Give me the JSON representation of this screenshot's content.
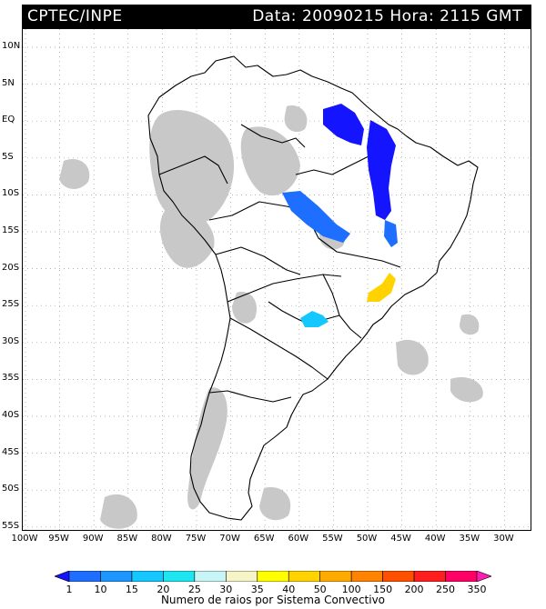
{
  "header": {
    "source": "CPTEC/INPE",
    "datetime": "Data: 20090215 Hora: 2115 GMT"
  },
  "map": {
    "lat_labels": [
      "10N",
      "5N",
      "EQ",
      "5S",
      "10S",
      "15S",
      "20S",
      "25S",
      "30S",
      "35S",
      "40S",
      "45S",
      "50S",
      "55S"
    ],
    "lon_labels": [
      "100W",
      "95W",
      "90W",
      "85W",
      "80W",
      "75W",
      "70W",
      "65W",
      "60W",
      "55W",
      "50W",
      "45W",
      "40W",
      "35W",
      "30W"
    ],
    "background_cloud_color": "#c8c8c8",
    "outline_color": "#000000"
  },
  "legend": {
    "values": [
      "1",
      "10",
      "15",
      "20",
      "25",
      "30",
      "35",
      "40",
      "50",
      "100",
      "150",
      "200",
      "250",
      "350"
    ],
    "colors": [
      "#1414ff",
      "#1e6eff",
      "#1e96ff",
      "#14c8ff",
      "#1ee6f0",
      "#c8f5f5",
      "#f5f5c8",
      "#ffff00",
      "#ffd200",
      "#ffaa00",
      "#ff8200",
      "#ff5000",
      "#ff1e1e",
      "#ff0064",
      "#ff1eb4"
    ],
    "caption": "Numero de raios por Sistema Convectivo"
  },
  "convective_systems": [
    {
      "name": "amazon-north-blue",
      "color": "#1414ff"
    },
    {
      "name": "northeast-blue",
      "color": "#1414ff"
    },
    {
      "name": "central-blue",
      "color": "#1e6eff"
    },
    {
      "name": "southeast-yellow",
      "color": "#ffd200"
    },
    {
      "name": "south-cyan",
      "color": "#14c8ff"
    }
  ]
}
